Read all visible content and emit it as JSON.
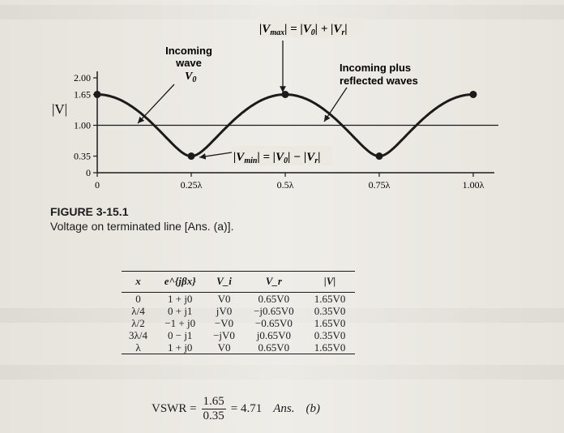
{
  "figure": {
    "chart_data": {
      "type": "line",
      "title": "",
      "ylabel": "|V|",
      "xlabel": "",
      "x_ticks": [
        "0",
        "0.25λ",
        "0.5λ",
        "0.75λ",
        "1.00λ"
      ],
      "y_ticks": [
        "0",
        "0.35",
        "1.00",
        "1.65",
        "2.00"
      ],
      "ylim": [
        0,
        2.0
      ],
      "xlim": [
        0,
        1.0
      ],
      "series": [
        {
          "name": "Incoming plus reflected waves",
          "x": [
            0,
            0.05,
            0.1,
            0.15,
            0.2,
            0.25,
            0.3,
            0.35,
            0.4,
            0.45,
            0.5,
            0.55,
            0.6,
            0.65,
            0.7,
            0.75,
            0.8,
            0.85,
            0.9,
            0.95,
            1.0
          ],
          "y": [
            1.65,
            1.59,
            1.43,
            1.17,
            0.86,
            0.35,
            0.86,
            1.17,
            1.43,
            1.59,
            1.65,
            1.59,
            1.43,
            1.17,
            0.86,
            0.35,
            0.86,
            1.17,
            1.43,
            1.59,
            1.65
          ]
        },
        {
          "name": "Incoming wave V0",
          "x": [
            0,
            1.0
          ],
          "y": [
            1.0,
            1.0
          ]
        }
      ],
      "points": [
        [
          0,
          1.65
        ],
        [
          0.25,
          0.35
        ],
        [
          0.5,
          1.65
        ],
        [
          0.75,
          0.35
        ],
        [
          1.0,
          1.65
        ]
      ],
      "annotations": {
        "incoming_1": "Incoming",
        "incoming_2": "wave",
        "incoming_3": "V",
        "incoming_3_sub": "0",
        "reflected_1": "Incoming plus",
        "reflected_2": "reflected waves",
        "vmax_label": "|V",
        "vmax_sub": "max",
        "vmax_rest": "| = |V",
        "vmax_rest_sub": "0",
        "vmax_tail": "| + |V",
        "vmax_tail_sub": "r",
        "vmin_label": "|V",
        "vmin_sub": "min",
        "vmin_rest": "| = |V",
        "vmin_rest_sub": "0",
        "vmin_tail": "| − |V",
        "vmin_tail_sub": "r"
      }
    },
    "caption_number": "FIGURE 3-15.1",
    "caption_text": "Voltage on terminated line [Ans. (a)]."
  },
  "table": {
    "headers": [
      "x",
      "e^{jβx}",
      "V_i",
      "V_r",
      "|V|"
    ],
    "rows": [
      [
        "0",
        "1 + j0",
        "V0",
        "0.65V0",
        "1.65V0"
      ],
      [
        "λ/4",
        "0 + j1",
        "jV0",
        "−j0.65V0",
        "0.35V0"
      ],
      [
        "λ/2",
        "−1 + j0",
        "−V0",
        "−0.65V0",
        "1.65V0"
      ],
      [
        "3λ/4",
        "0 − j1",
        "−jV0",
        "j0.65V0",
        "0.35V0"
      ],
      [
        "λ",
        "1 + j0",
        "V0",
        "0.65V0",
        "1.65V0"
      ]
    ]
  },
  "vswr": {
    "label": "VSWR =",
    "numerator": "1.65",
    "denominator": "0.35",
    "result": "= 4.71",
    "ans": "Ans.",
    "part": "(b)"
  },
  "colors": {
    "ink": "#1b1b1b",
    "paper": "#ece9e3"
  }
}
